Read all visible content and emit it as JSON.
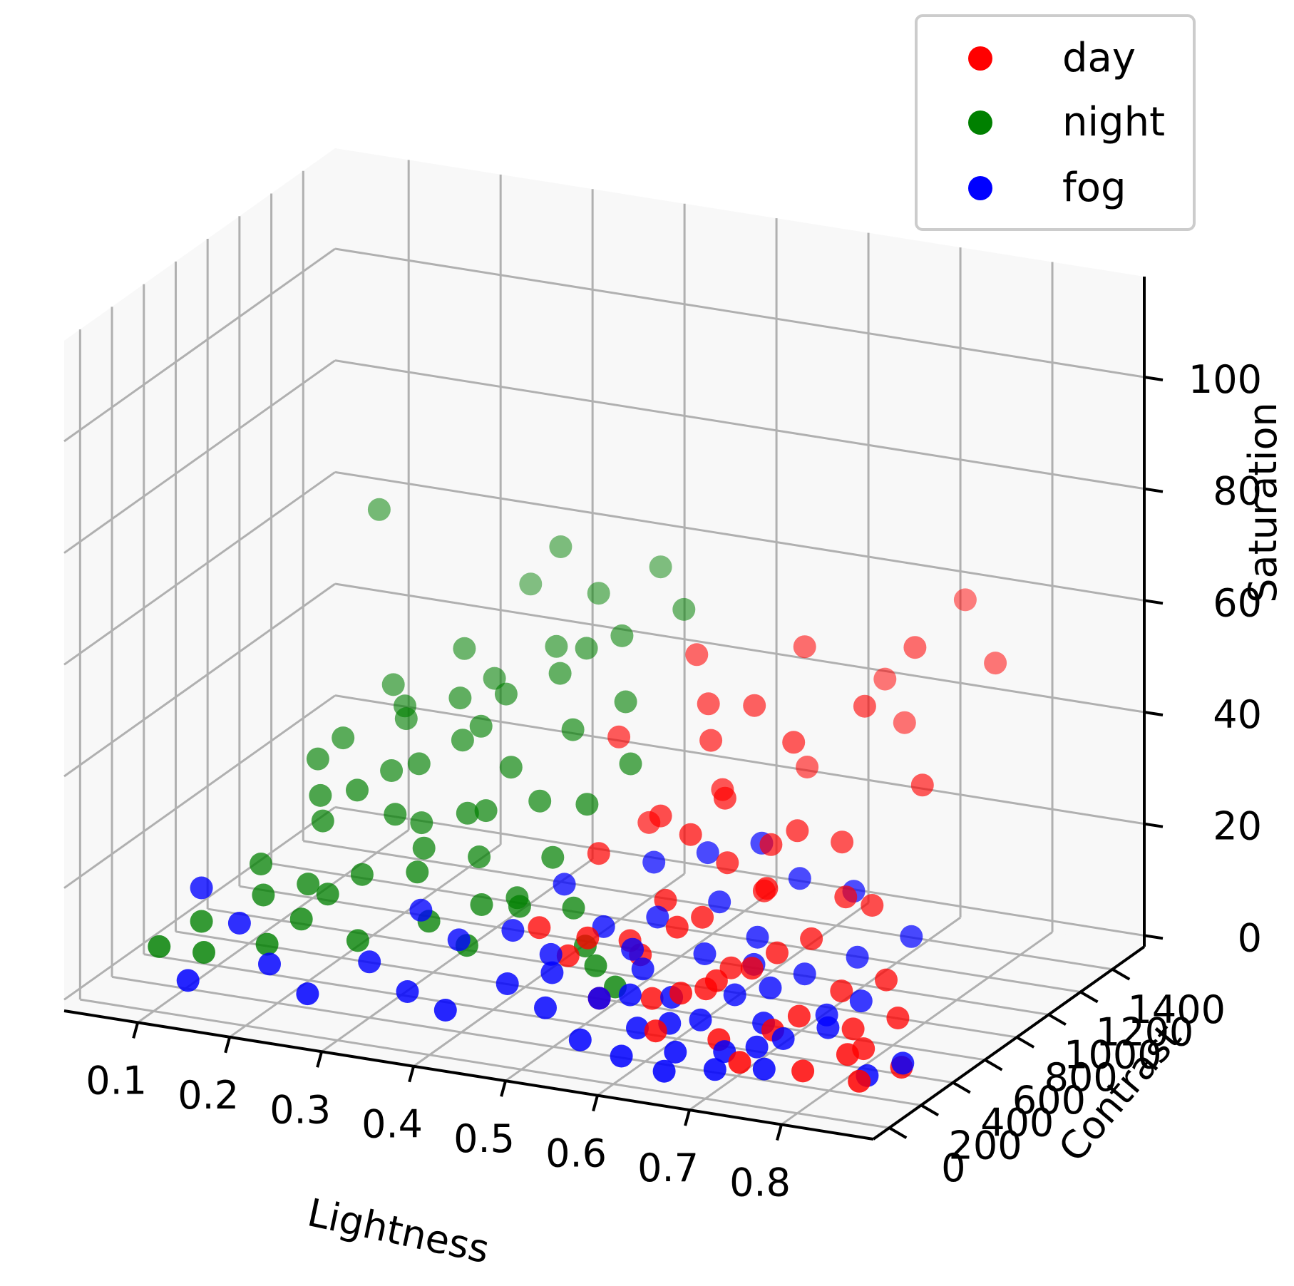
{
  "chart_data": {
    "type": "scatter",
    "projection": "3d",
    "xlabel": "Lightness",
    "ylabel": "Contrast",
    "zlabel": "Saturation",
    "x_ticks": [
      "0.1",
      "0.2",
      "0.3",
      "0.4",
      "0.5",
      "0.6",
      "0.7",
      "0.8"
    ],
    "y_ticks": [
      "0",
      "200",
      "400",
      "600",
      "800",
      "1000",
      "1200",
      "1400"
    ],
    "z_ticks": [
      "0",
      "20",
      "40",
      "60",
      "80",
      "100"
    ],
    "xlim": [
      0.02,
      0.9
    ],
    "ylim": [
      -100,
      1600
    ],
    "zlim": [
      -2,
      118
    ],
    "legend_position": "top-right",
    "series": [
      {
        "name": "day",
        "color": "#ff0000",
        "points": [
          [
            0.72,
            1200,
            55
          ],
          [
            0.78,
            900,
            38
          ],
          [
            0.62,
            1100,
            33
          ],
          [
            0.55,
            900,
            40
          ],
          [
            0.65,
            700,
            28
          ],
          [
            0.58,
            600,
            30
          ],
          [
            0.68,
            500,
            25
          ],
          [
            0.74,
            650,
            22
          ],
          [
            0.5,
            800,
            26
          ],
          [
            0.6,
            400,
            18
          ],
          [
            0.66,
            300,
            12
          ],
          [
            0.7,
            450,
            15
          ],
          [
            0.75,
            300,
            8
          ],
          [
            0.8,
            350,
            6
          ],
          [
            0.63,
            250,
            10
          ],
          [
            0.57,
            500,
            20
          ],
          [
            0.52,
            300,
            16
          ],
          [
            0.48,
            600,
            24
          ],
          [
            0.45,
            400,
            14
          ],
          [
            0.55,
            200,
            8
          ],
          [
            0.62,
            150,
            5
          ],
          [
            0.68,
            200,
            4
          ],
          [
            0.72,
            100,
            3
          ],
          [
            0.78,
            150,
            2
          ],
          [
            0.82,
            200,
            5
          ],
          [
            0.85,
            100,
            3
          ],
          [
            0.6,
            700,
            35
          ],
          [
            0.58,
            1000,
            45
          ],
          [
            0.64,
            900,
            42
          ],
          [
            0.7,
            1000,
            48
          ],
          [
            0.5,
            1100,
            50
          ],
          [
            0.45,
            900,
            38
          ],
          [
            0.53,
            700,
            30
          ],
          [
            0.67,
            1300,
            46
          ],
          [
            0.74,
            1400,
            60
          ],
          [
            0.79,
            1300,
            52
          ],
          [
            0.56,
            400,
            12
          ],
          [
            0.61,
            500,
            18
          ],
          [
            0.66,
            600,
            22
          ],
          [
            0.71,
            800,
            28
          ],
          [
            0.76,
            700,
            20
          ],
          [
            0.81,
            500,
            12
          ],
          [
            0.84,
            400,
            8
          ],
          [
            0.69,
            350,
            14
          ],
          [
            0.73,
            250,
            6
          ],
          [
            0.64,
            350,
            9
          ],
          [
            0.59,
            300,
            7
          ],
          [
            0.54,
            450,
            13
          ],
          [
            0.49,
            350,
            11
          ],
          [
            0.62,
            600,
            26
          ],
          [
            0.67,
            750,
            30
          ],
          [
            0.72,
            550,
            16
          ],
          [
            0.77,
            450,
            10
          ],
          [
            0.82,
            300,
            4
          ],
          [
            0.87,
            250,
            3
          ],
          [
            0.65,
            450,
            11
          ],
          [
            0.58,
            800,
            34
          ],
          [
            0.53,
            1000,
            44
          ],
          [
            0.6,
            1200,
            52
          ],
          [
            0.7,
            1250,
            40
          ]
        ]
      },
      {
        "name": "night",
        "color": "#008000",
        "points": [
          [
            0.12,
            1300,
            62
          ],
          [
            0.25,
            1500,
            48
          ],
          [
            0.3,
            1400,
            58
          ],
          [
            0.35,
            1350,
            52
          ],
          [
            0.4,
            1450,
            56
          ],
          [
            0.15,
            900,
            30
          ],
          [
            0.2,
            1000,
            35
          ],
          [
            0.22,
            800,
            28
          ],
          [
            0.28,
            900,
            33
          ],
          [
            0.32,
            700,
            25
          ],
          [
            0.18,
            600,
            22
          ],
          [
            0.25,
            650,
            24
          ],
          [
            0.3,
            500,
            18
          ],
          [
            0.35,
            600,
            20
          ],
          [
            0.4,
            550,
            15
          ],
          [
            0.1,
            300,
            8
          ],
          [
            0.15,
            400,
            12
          ],
          [
            0.2,
            350,
            10
          ],
          [
            0.12,
            200,
            5
          ],
          [
            0.08,
            150,
            6
          ],
          [
            0.18,
            250,
            7
          ],
          [
            0.22,
            400,
            14
          ],
          [
            0.27,
            300,
            9
          ],
          [
            0.33,
            400,
            12
          ],
          [
            0.38,
            350,
            10
          ],
          [
            0.42,
            450,
            16
          ],
          [
            0.45,
            700,
            30
          ],
          [
            0.48,
            800,
            36
          ],
          [
            0.44,
            1000,
            42
          ],
          [
            0.38,
            1100,
            48
          ],
          [
            0.33,
            1200,
            45
          ],
          [
            0.28,
            1100,
            40
          ],
          [
            0.23,
            1200,
            42
          ],
          [
            0.17,
            1100,
            36
          ],
          [
            0.2,
            700,
            26
          ],
          [
            0.25,
            800,
            30
          ],
          [
            0.3,
            900,
            36
          ],
          [
            0.35,
            800,
            32
          ],
          [
            0.4,
            900,
            38
          ],
          [
            0.43,
            600,
            22
          ],
          [
            0.47,
            500,
            16
          ],
          [
            0.5,
            400,
            12
          ],
          [
            0.52,
            350,
            10
          ],
          [
            0.55,
            300,
            8
          ],
          [
            0.24,
            500,
            16
          ],
          [
            0.29,
            600,
            20
          ],
          [
            0.34,
            700,
            26
          ],
          [
            0.39,
            750,
            28
          ],
          [
            0.16,
            700,
            24
          ],
          [
            0.13,
            500,
            15
          ],
          [
            0.19,
            450,
            14
          ],
          [
            0.26,
            1000,
            38
          ],
          [
            0.31,
            1000,
            40
          ],
          [
            0.36,
            1050,
            44
          ],
          [
            0.41,
            1150,
            50
          ],
          [
            0.46,
            1250,
            54
          ],
          [
            0.21,
            950,
            34
          ],
          [
            0.37,
            500,
            14
          ],
          [
            0.14,
            800,
            28
          ],
          [
            0.27,
            700,
            22
          ]
        ]
      },
      {
        "name": "fog",
        "color": "#0000ff",
        "points": [
          [
            0.55,
            200,
            8
          ],
          [
            0.6,
            150,
            5
          ],
          [
            0.65,
            100,
            3
          ],
          [
            0.7,
            120,
            4
          ],
          [
            0.75,
            200,
            6
          ],
          [
            0.58,
            300,
            12
          ],
          [
            0.62,
            250,
            9
          ],
          [
            0.68,
            300,
            10
          ],
          [
            0.72,
            250,
            7
          ],
          [
            0.78,
            300,
            9
          ],
          [
            0.5,
            150,
            6
          ],
          [
            0.45,
            200,
            8
          ],
          [
            0.4,
            100,
            4
          ],
          [
            0.35,
            150,
            5
          ],
          [
            0.3,
            200,
            8
          ],
          [
            0.25,
            100,
            3
          ],
          [
            0.2,
            150,
            6
          ],
          [
            0.15,
            250,
            10
          ],
          [
            0.1,
            300,
            14
          ],
          [
            0.12,
            100,
            2
          ],
          [
            0.52,
            400,
            16
          ],
          [
            0.57,
            450,
            18
          ],
          [
            0.63,
            400,
            14
          ],
          [
            0.67,
            500,
            16
          ],
          [
            0.73,
            450,
            12
          ],
          [
            0.8,
            400,
            10
          ],
          [
            0.85,
            150,
            3
          ],
          [
            0.88,
            200,
            5
          ],
          [
            0.82,
            600,
            18
          ],
          [
            0.77,
            550,
            14
          ],
          [
            0.6,
            50,
            2
          ],
          [
            0.65,
            30,
            1
          ],
          [
            0.7,
            60,
            2
          ],
          [
            0.75,
            80,
            3
          ],
          [
            0.55,
            80,
            3
          ],
          [
            0.48,
            300,
            12
          ],
          [
            0.43,
            350,
            14
          ],
          [
            0.38,
            300,
            12
          ],
          [
            0.33,
            350,
            15
          ],
          [
            0.54,
            600,
            24
          ],
          [
            0.59,
            650,
            26
          ],
          [
            0.64,
            700,
            28
          ],
          [
            0.69,
            650,
            24
          ],
          [
            0.74,
            700,
            22
          ],
          [
            0.46,
            500,
            20
          ],
          [
            0.66,
            200,
            7
          ],
          [
            0.71,
            350,
            11
          ],
          [
            0.62,
            550,
            20
          ],
          [
            0.56,
            350,
            14
          ],
          [
            0.68,
            420,
            13
          ],
          [
            0.73,
            150,
            5
          ],
          [
            0.79,
            250,
            8
          ],
          [
            0.58,
            220,
            9
          ],
          [
            0.63,
            180,
            6
          ],
          [
            0.49,
            250,
            10
          ]
        ]
      }
    ]
  }
}
